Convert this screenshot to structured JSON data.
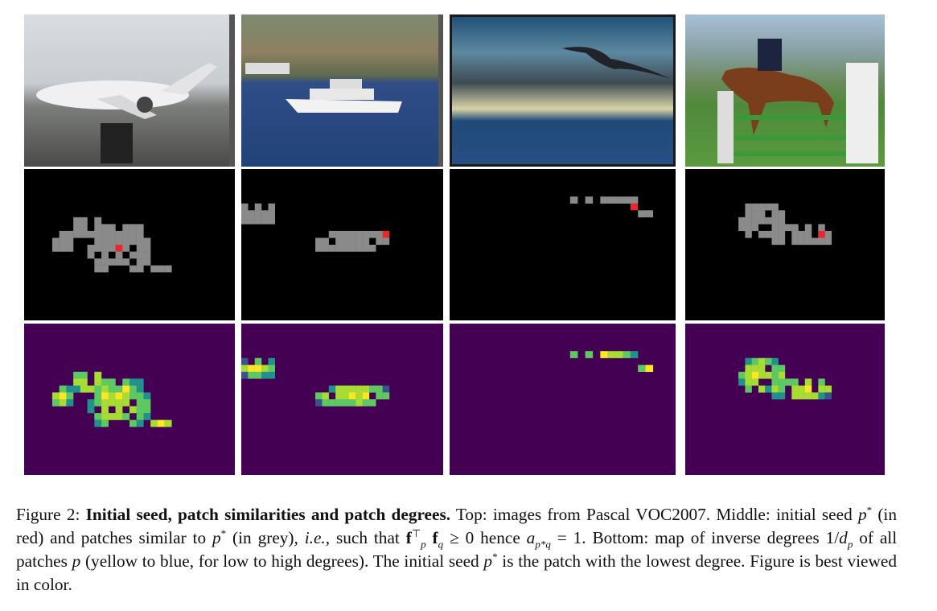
{
  "figure": {
    "columns": [
      "airplane",
      "boat",
      "bird",
      "horse"
    ],
    "rows": [
      "images",
      "initial-seed-and-similar-patches",
      "inverse-degree-map"
    ],
    "colors": {
      "seed": "#e8282b",
      "similar": "#8a8a8a",
      "background": "#000000",
      "low_map": "#440154",
      "high_map": "#fde725"
    }
  },
  "caption": {
    "label": "Figure 2:",
    "title": "Initial seed, patch similarities and patch degrees.",
    "p1": "Top: images from Pascal VOC2007. Middle: initial seed",
    "p2": "(in red) and patches similar to",
    "p3": "(in grey),",
    "ie": "i.e.",
    "p4": ", such that",
    "p5": "hence",
    "p6": "= 1. Bottom: map of inverse degrees 1/",
    "p7": "of all patches",
    "p8": "(yellow to blue, for low to high degrees). The initial seed",
    "p9": "is the patch with the lowest degree. Figure is best viewed in color.",
    "math_p": "p",
    "math_star": "*",
    "math_f": "f",
    "math_T": "⊤",
    "math_q": "q",
    "math_geq": "≥ 0",
    "math_a": "a",
    "math_sub_a": "p*q",
    "math_d": "d"
  }
}
